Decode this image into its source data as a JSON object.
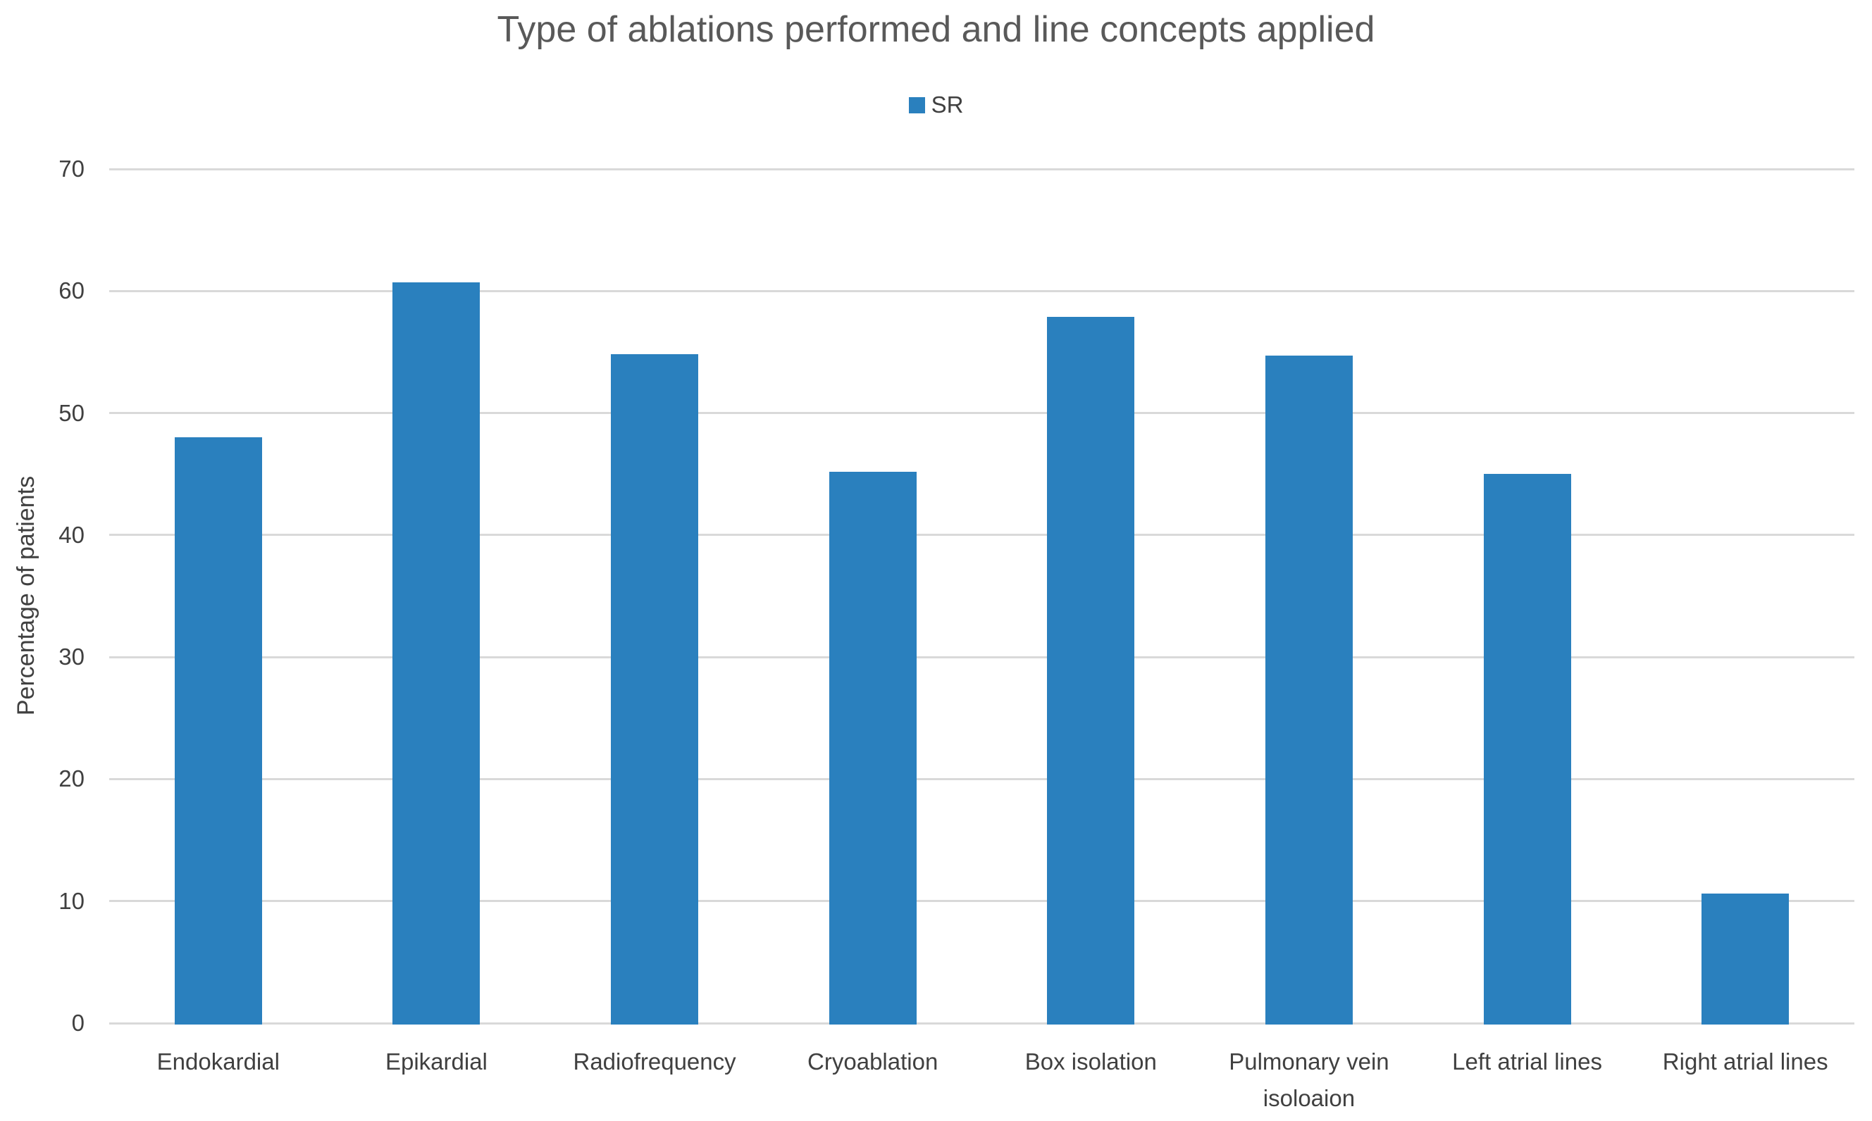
{
  "chart_data": {
    "type": "bar",
    "title": "Type of ablations performed and line concepts applied",
    "ylabel": "Percentage of patients",
    "xlabel": "",
    "categories": [
      "Endokardial",
      "Epikardial",
      "Radiofrequency",
      "Cryoablation",
      "Box isolation",
      "Pulmonary vein isoloaion",
      "Left atrial lines",
      "Right atrial lines"
    ],
    "series": [
      {
        "name": "SR",
        "values": [
          48,
          60.7,
          54.8,
          45.2,
          57.9,
          54.7,
          45,
          10.6
        ]
      }
    ],
    "ylim": [
      0,
      70
    ],
    "yticks": [
      0,
      10,
      20,
      30,
      40,
      50,
      60,
      70
    ],
    "grid": true,
    "legend_position": "top-center",
    "colors": {
      "bar": "#2A80BE",
      "gridline": "#D9D9D9",
      "axis_line": "#D9D9D9",
      "title_text": "#595959",
      "axis_text": "#404040",
      "background": "#FFFFFF"
    }
  }
}
